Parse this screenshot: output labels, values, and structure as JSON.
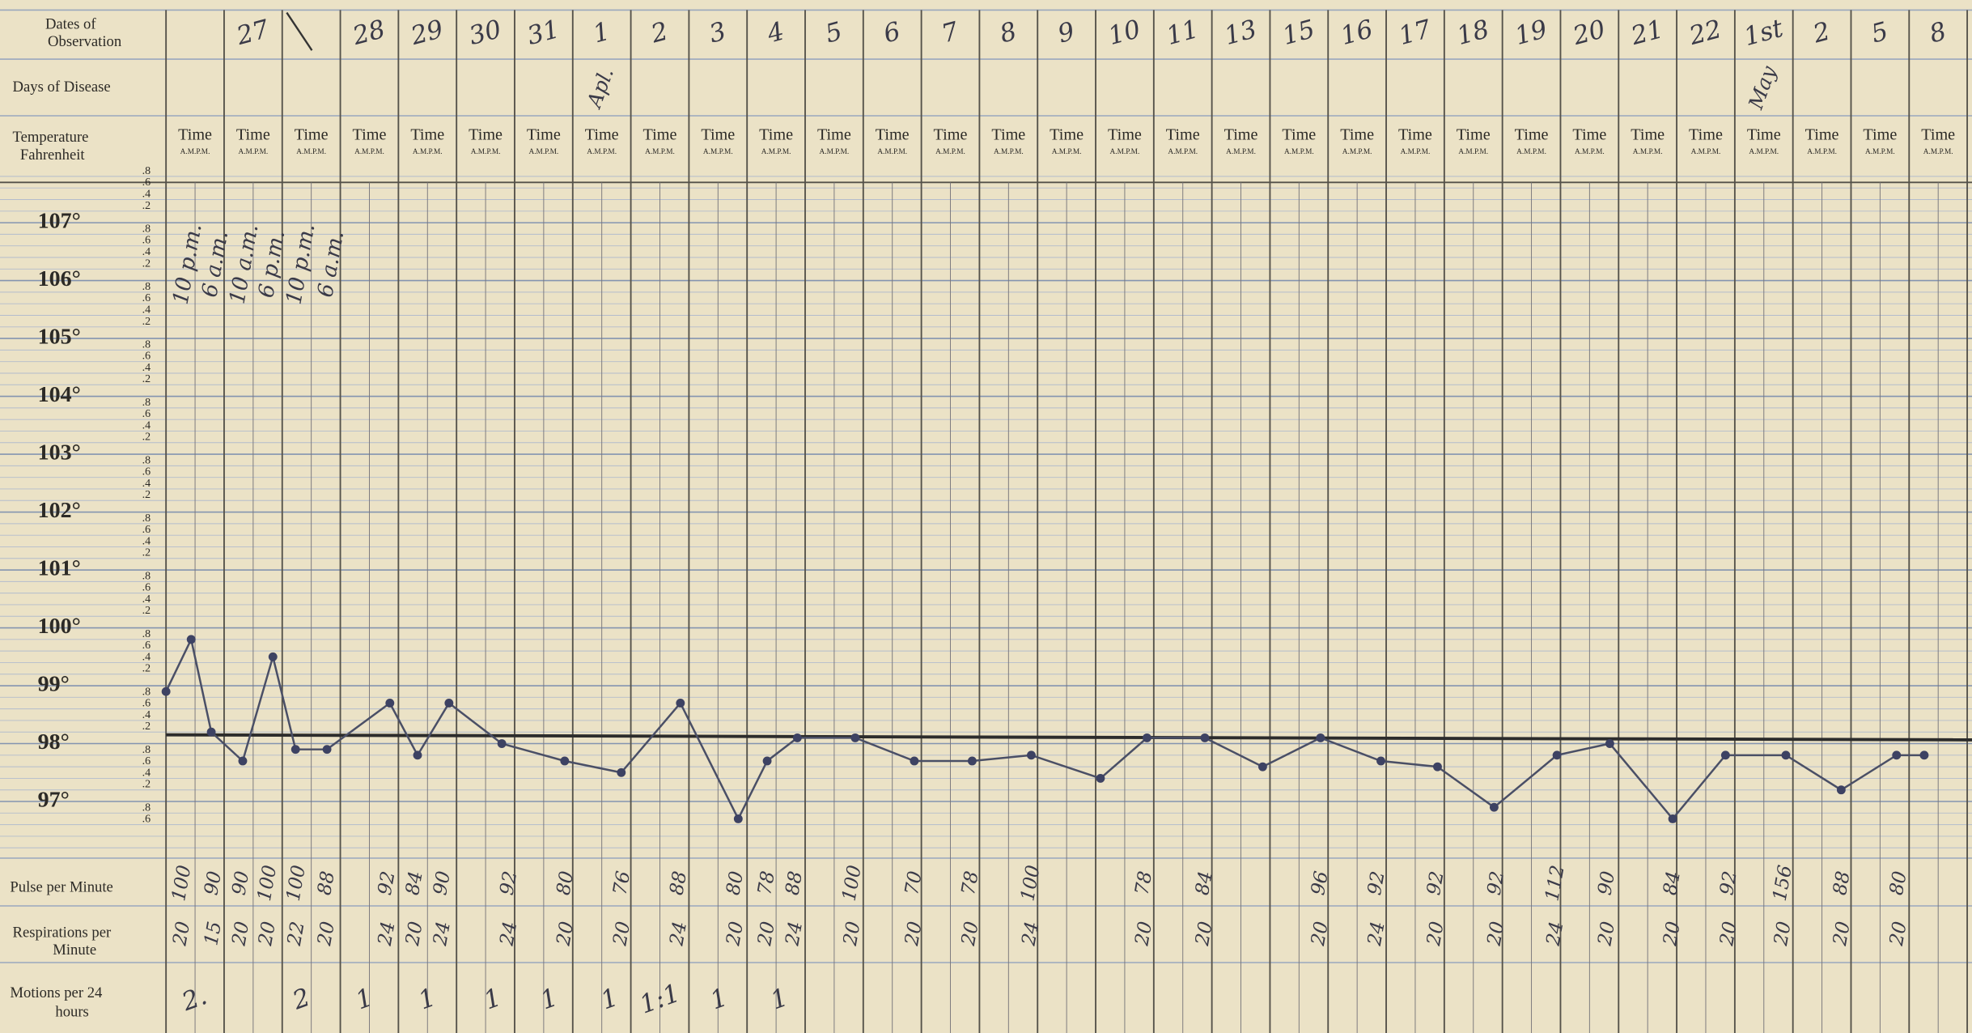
{
  "labels": {
    "dates": [
      "Dates of",
      "Observation"
    ],
    "days": "Days of Disease",
    "temperature": [
      "Temperature",
      "Fahrenheit"
    ],
    "pulse": "Pulse per Minute",
    "respirations": [
      "Respirations per",
      "Minute"
    ],
    "motions": [
      "Motions per 24",
      "hours"
    ]
  },
  "time_header": {
    "time": "Time",
    "ampm": "A.M.P.M."
  },
  "temperature_scale": {
    "degrees": [
      "107°",
      "106°",
      "105°",
      "104°",
      "103°",
      "102°",
      "101°",
      "100°",
      "99°",
      "98°",
      "97°"
    ],
    "minor": [
      ".8",
      ".6",
      ".4",
      ".2"
    ]
  },
  "dates": [
    null,
    "27",
    null,
    "28",
    "29",
    "30",
    "31",
    "1",
    "2",
    "3",
    "4",
    "5",
    "6",
    "7",
    "8",
    "9",
    "10",
    "11",
    "13",
    "15",
    "16",
    "17",
    "18",
    "19",
    "20",
    "21",
    "22",
    "1st",
    "2",
    "5",
    "8"
  ],
  "days_of_disease": [
    null,
    null,
    null,
    null,
    null,
    null,
    null,
    "Apl.",
    null,
    null,
    null,
    null,
    null,
    null,
    null,
    null,
    null,
    null,
    null,
    null,
    null,
    null,
    null,
    null,
    null,
    null,
    null,
    "May",
    null,
    null,
    null
  ],
  "times_noted": [
    "10 p.m.",
    "6 a.m.",
    "10 a.m.",
    "6 p.m.",
    "10 p.m.",
    "6 a.m."
  ],
  "temperatures": [
    98.9,
    99.8,
    98.2,
    97.7,
    99.5,
    97.9,
    97.9,
    98.7,
    97.8,
    98.7,
    98,
    97.7,
    97.5,
    98.7,
    96.7,
    97.7,
    98.1,
    98.1,
    97.7,
    97.7,
    97.8,
    97.4,
    98.1,
    98.1,
    97.6,
    98.1,
    97.7,
    97.6,
    96.9,
    97.8,
    98,
    96.7,
    97.8,
    97.8,
    97.2,
    97.8,
    97.8
  ],
  "pulse": [
    100,
    90,
    90,
    100,
    100,
    88,
    92,
    84,
    90,
    92,
    80,
    76,
    88,
    80,
    78,
    88,
    100,
    70,
    78,
    100,
    78,
    84,
    96,
    92,
    92,
    92,
    112,
    90,
    84,
    92,
    156,
    88,
    80
  ],
  "respirations": [
    20,
    15,
    20,
    20,
    22,
    20,
    24,
    20,
    24,
    24,
    20,
    20,
    24,
    20,
    20,
    24,
    20,
    20,
    20,
    24,
    20,
    20,
    20,
    24,
    20,
    20,
    24,
    20,
    20,
    20,
    20,
    20,
    20
  ],
  "motions": [
    "2.",
    "2",
    "1",
    "1",
    "1",
    "1",
    "1",
    "1:1",
    "1",
    "1"
  ]
}
